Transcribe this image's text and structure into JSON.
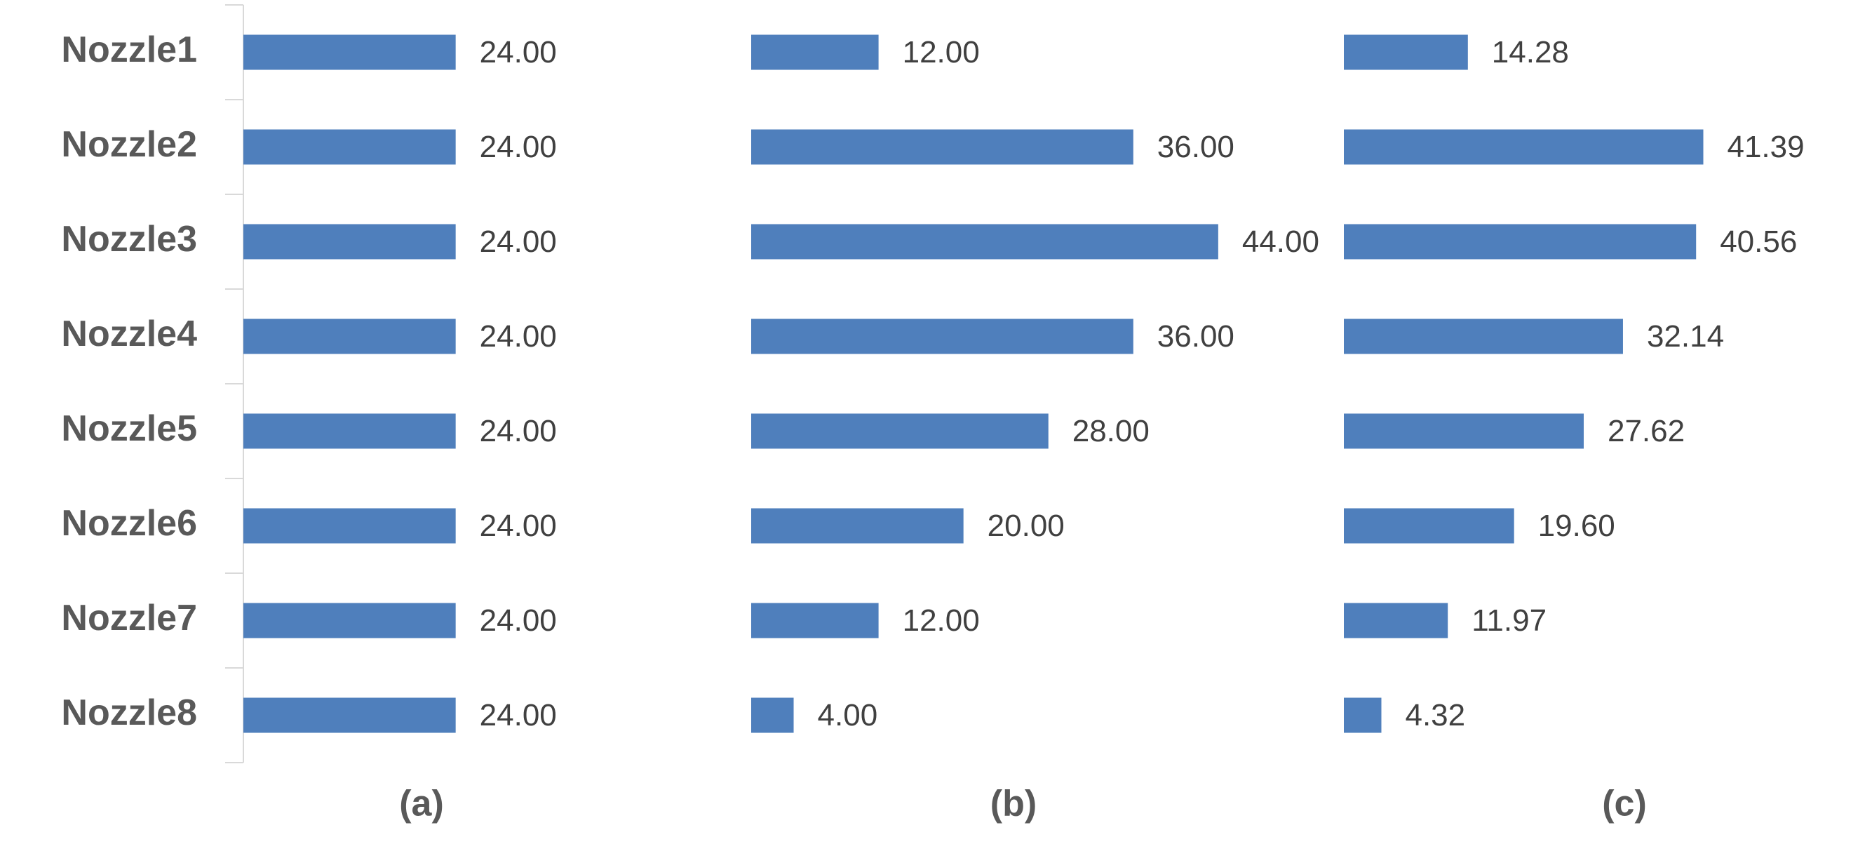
{
  "chart_data": [
    {
      "type": "bar",
      "orientation": "horizontal",
      "title": "(a)",
      "categories": [
        "Nozzle1",
        "Nozzle2",
        "Nozzle3",
        "Nozzle4",
        "Nozzle5",
        "Nozzle6",
        "Nozzle7",
        "Nozzle8"
      ],
      "values": [
        24,
        24,
        24,
        24,
        24,
        24,
        24,
        24
      ],
      "value_labels": [
        "24.00",
        "24.00",
        "24.00",
        "24.00",
        "24.00",
        "24.00",
        "24.00",
        "24.00"
      ],
      "color": "#4f7fbc",
      "xlim": [
        0,
        54
      ]
    },
    {
      "type": "bar",
      "orientation": "horizontal",
      "title": "(b)",
      "values": [
        12,
        36,
        44,
        36,
        28,
        20,
        12,
        4
      ],
      "value_labels": [
        "12.00",
        "36.00",
        "44.00",
        "36.00",
        "28.00",
        "20.00",
        "12.00",
        "4.00"
      ],
      "color": "#4f7fbc",
      "xlim": [
        0,
        45
      ]
    },
    {
      "type": "bar",
      "orientation": "horizontal",
      "title": "(c)",
      "values": [
        14.28,
        41.39,
        40.56,
        32.14,
        27.62,
        19.6,
        11.97,
        4.32
      ],
      "value_labels": [
        "14.28",
        "41.39",
        "40.56",
        "32.14",
        "27.62",
        "19.60",
        "11.97",
        "4.32"
      ],
      "color": "#4f7fbc",
      "xlim": [
        0,
        55
      ]
    }
  ]
}
